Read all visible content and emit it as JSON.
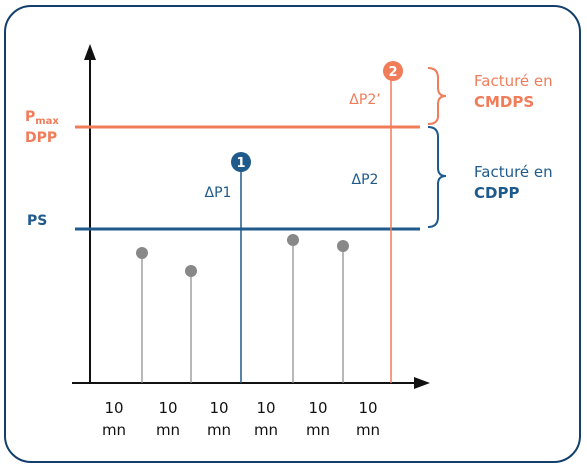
{
  "colors": {
    "orange": "#f07c5a",
    "blue": "#1f5a8c",
    "gray": "#888888",
    "border": "#123f6b",
    "axis": "#111111"
  },
  "labels": {
    "pmax_main": "P",
    "pmax_sub": "max",
    "dpp": "DPP",
    "ps": "PS",
    "dp1": "ΔP1",
    "dp2": "ΔP2",
    "dp2_prime": "ΔP2’",
    "badge1": "1",
    "badge2": "2",
    "cmdps_top": "Facturé en",
    "cmdps_bottom": "CMDPS",
    "cdpp_top": "Facturé en",
    "cdpp_bottom": "CDPP"
  },
  "x_ticks": [
    {
      "line1": "10",
      "line2": "mn"
    },
    {
      "line1": "10",
      "line2": "mn"
    },
    {
      "line1": "10",
      "line2": "mn"
    },
    {
      "line1": "10",
      "line2": "mn"
    },
    {
      "line1": "10",
      "line2": "mn"
    },
    {
      "line1": "10",
      "line2": "mn"
    }
  ],
  "chart_data": {
    "type": "scatter",
    "note_levels": {
      "PS": 1.0,
      "Pmax_DPP": 1.65
    },
    "points": [
      {
        "interval": 1,
        "value": 0.85,
        "series": "normal"
      },
      {
        "interval": 2,
        "value": 0.73,
        "series": "normal"
      },
      {
        "interval": 3,
        "value": 1.45,
        "series": "ΔP1"
      },
      {
        "interval": 4,
        "value": 0.92,
        "series": "normal"
      },
      {
        "interval": 5,
        "value": 0.89,
        "series": "normal"
      },
      {
        "interval": 6,
        "value": 2.06,
        "series": "ΔP2"
      }
    ]
  }
}
